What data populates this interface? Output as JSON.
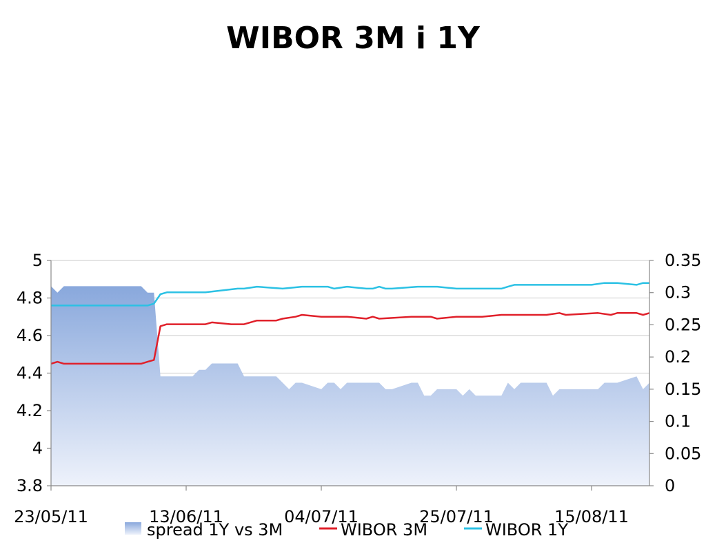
{
  "chart_data": {
    "type": "line",
    "title": "WIBOR 3M i 1Y",
    "x_tick_labels": [
      "23/05/11",
      "13/06/11",
      "04/07/11",
      "25/07/11",
      "15/08/11"
    ],
    "x_tick_dates": [
      "2011-05-23",
      "2011-06-13",
      "2011-07-04",
      "2011-07-25",
      "2011-08-15"
    ],
    "x_range": [
      "2011-05-23",
      "2011-08-24"
    ],
    "y_left": {
      "range": [
        3.8,
        5.0
      ],
      "ticks": [
        "5",
        "4.8",
        "4.6",
        "4.4",
        "4.2",
        "4",
        "3.8"
      ]
    },
    "y_right": {
      "range": [
        0,
        0.35
      ],
      "ticks": [
        "0.35",
        "0.3",
        "0.25",
        "0.2",
        "0.15",
        "0.1",
        "0.05",
        "0"
      ]
    },
    "grid": "horizontal",
    "legend_position": "bottom",
    "series": [
      {
        "name": "spread 1Y vs 3M",
        "kind": "area",
        "axis": "right",
        "color": "#a6bce6",
        "x": [
          "2011-05-23",
          "2011-05-24",
          "2011-05-25",
          "2011-05-26",
          "2011-05-27",
          "2011-05-30",
          "2011-05-31",
          "2011-06-01",
          "2011-06-02",
          "2011-06-03",
          "2011-06-06",
          "2011-06-07",
          "2011-06-08",
          "2011-06-09",
          "2011-06-10",
          "2011-06-13",
          "2011-06-14",
          "2011-06-15",
          "2011-06-16",
          "2011-06-17",
          "2011-06-20",
          "2011-06-21",
          "2011-06-22",
          "2011-06-24",
          "2011-06-27",
          "2011-06-28",
          "2011-06-29",
          "2011-06-30",
          "2011-07-01",
          "2011-07-04",
          "2011-07-05",
          "2011-07-06",
          "2011-07-07",
          "2011-07-08",
          "2011-07-11",
          "2011-07-12",
          "2011-07-13",
          "2011-07-14",
          "2011-07-15",
          "2011-07-18",
          "2011-07-19",
          "2011-07-20",
          "2011-07-21",
          "2011-07-22",
          "2011-07-25",
          "2011-07-26",
          "2011-07-27",
          "2011-07-28",
          "2011-07-29",
          "2011-08-01",
          "2011-08-02",
          "2011-08-03",
          "2011-08-04",
          "2011-08-05",
          "2011-08-08",
          "2011-08-09",
          "2011-08-10",
          "2011-08-11",
          "2011-08-12",
          "2011-08-16",
          "2011-08-17",
          "2011-08-18",
          "2011-08-19",
          "2011-08-22",
          "2011-08-23",
          "2011-08-24"
        ],
        "values": [
          0.31,
          0.3,
          0.31,
          0.31,
          0.31,
          0.31,
          0.31,
          0.31,
          0.31,
          0.31,
          0.31,
          0.3,
          0.3,
          0.17,
          0.17,
          0.17,
          0.17,
          0.18,
          0.18,
          0.19,
          0.19,
          0.19,
          0.17,
          0.17,
          0.17,
          0.16,
          0.15,
          0.16,
          0.16,
          0.15,
          0.16,
          0.16,
          0.15,
          0.16,
          0.16,
          0.16,
          0.16,
          0.15,
          0.15,
          0.16,
          0.16,
          0.14,
          0.14,
          0.15,
          0.15,
          0.14,
          0.15,
          0.14,
          0.14,
          0.14,
          0.16,
          0.15,
          0.16,
          0.16,
          0.16,
          0.14,
          0.15,
          0.15,
          0.15,
          0.15,
          0.16,
          0.16,
          0.16,
          0.17,
          0.15,
          0.16
        ]
      },
      {
        "name": "WIBOR 3M",
        "kind": "line",
        "axis": "left",
        "color": "#e0202a",
        "x": [
          "2011-05-23",
          "2011-05-24",
          "2011-05-25",
          "2011-06-06",
          "2011-06-07",
          "2011-06-08",
          "2011-06-09",
          "2011-06-10",
          "2011-06-14",
          "2011-06-16",
          "2011-06-17",
          "2011-06-20",
          "2011-06-22",
          "2011-06-24",
          "2011-06-27",
          "2011-06-28",
          "2011-06-30",
          "2011-07-01",
          "2011-07-04",
          "2011-07-06",
          "2011-07-08",
          "2011-07-11",
          "2011-07-12",
          "2011-07-13",
          "2011-07-18",
          "2011-07-21",
          "2011-07-22",
          "2011-07-25",
          "2011-07-29",
          "2011-08-01",
          "2011-08-05",
          "2011-08-08",
          "2011-08-10",
          "2011-08-11",
          "2011-08-16",
          "2011-08-18",
          "2011-08-19",
          "2011-08-22",
          "2011-08-23",
          "2011-08-24"
        ],
        "values": [
          4.45,
          4.46,
          4.45,
          4.45,
          4.46,
          4.47,
          4.65,
          4.66,
          4.66,
          4.66,
          4.67,
          4.66,
          4.66,
          4.68,
          4.68,
          4.69,
          4.7,
          4.71,
          4.7,
          4.7,
          4.7,
          4.69,
          4.7,
          4.69,
          4.7,
          4.7,
          4.69,
          4.7,
          4.7,
          4.71,
          4.71,
          4.71,
          4.72,
          4.71,
          4.72,
          4.71,
          4.72,
          4.72,
          4.71,
          4.72
        ]
      },
      {
        "name": "WIBOR 1Y",
        "kind": "line",
        "axis": "left",
        "color": "#2bc1e4",
        "x": [
          "2011-05-23",
          "2011-06-07",
          "2011-06-08",
          "2011-06-09",
          "2011-06-10",
          "2011-06-14",
          "2011-06-16",
          "2011-06-21",
          "2011-06-22",
          "2011-06-24",
          "2011-06-28",
          "2011-07-01",
          "2011-07-04",
          "2011-07-05",
          "2011-07-06",
          "2011-07-08",
          "2011-07-11",
          "2011-07-12",
          "2011-07-13",
          "2011-07-14",
          "2011-07-15",
          "2011-07-19",
          "2011-07-22",
          "2011-07-25",
          "2011-08-01",
          "2011-08-02",
          "2011-08-03",
          "2011-08-15",
          "2011-08-17",
          "2011-08-18",
          "2011-08-19",
          "2011-08-22",
          "2011-08-23",
          "2011-08-24"
        ],
        "values": [
          4.76,
          4.76,
          4.77,
          4.82,
          4.83,
          4.83,
          4.83,
          4.85,
          4.85,
          4.86,
          4.85,
          4.86,
          4.86,
          4.86,
          4.85,
          4.86,
          4.85,
          4.85,
          4.86,
          4.85,
          4.85,
          4.86,
          4.86,
          4.85,
          4.85,
          4.86,
          4.87,
          4.87,
          4.88,
          4.88,
          4.88,
          4.87,
          4.88,
          4.88
        ]
      }
    ]
  }
}
